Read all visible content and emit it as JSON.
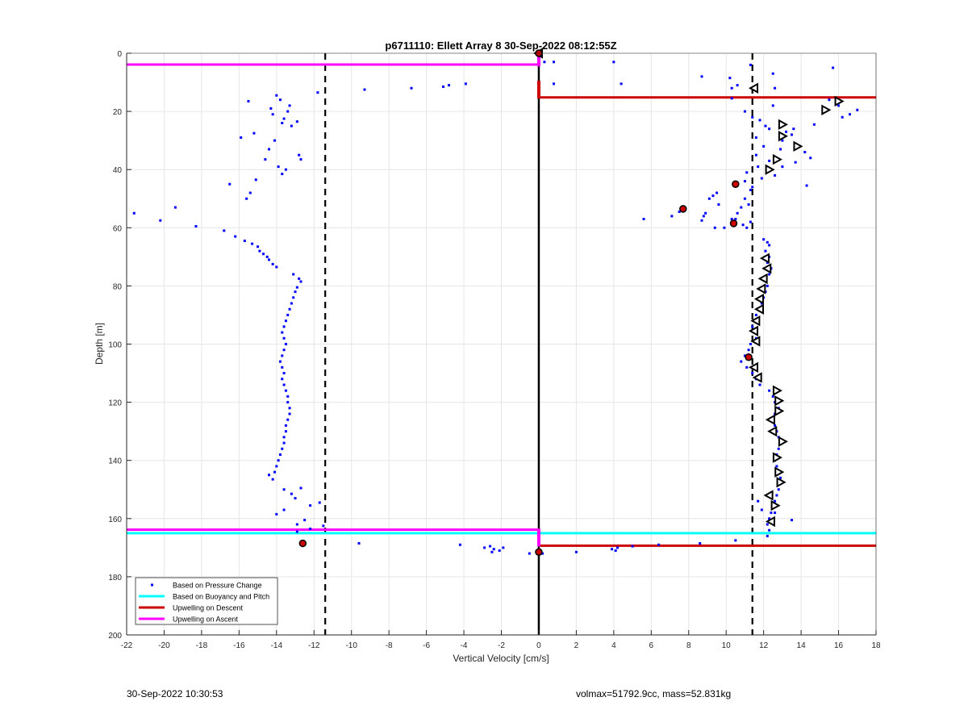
{
  "chart_data": {
    "type": "scatter",
    "title": "p6711110: Ellett Array 8 30-Sep-2022 08:12:55Z",
    "xlabel": "Vertical Velocity [cm/s]",
    "ylabel": "Depth [m]",
    "xlim": [
      -22,
      18
    ],
    "ylim": [
      0,
      200
    ],
    "y_reversed": true,
    "grid": true,
    "legend_position": "bottom-left",
    "xticks": [
      "-22",
      "-20",
      "-18",
      "-16",
      "-14",
      "-12",
      "-10",
      "-8",
      "-6",
      "-4",
      "-2",
      "0",
      "2",
      "4",
      "6",
      "8",
      "10",
      "12",
      "14",
      "16",
      "18"
    ],
    "yticks": [
      "0",
      "20",
      "40",
      "60",
      "80",
      "100",
      "120",
      "140",
      "160",
      "180",
      "200"
    ],
    "legend": [
      {
        "label": "Based on Pressure Change",
        "color": "#0000ff"
      },
      {
        "label": "Based on Buoyancy and Pitch",
        "color": "#00ffff"
      },
      {
        "label": "Upwelling on Descent",
        "color": "#cc0000"
      },
      {
        "label": "Upwelling on Ascent",
        "color": "#ff00ff"
      }
    ],
    "series": [
      {
        "name": "Based on Pressure Change",
        "color": "#0000ff",
        "points": [
          [
            -21.6,
            55
          ],
          [
            -20.2,
            57.5
          ],
          [
            -19.4,
            53
          ],
          [
            -18.3,
            59.5
          ],
          [
            -16.8,
            61
          ],
          [
            -16.5,
            45
          ],
          [
            -16.2,
            63
          ],
          [
            -15.9,
            29
          ],
          [
            -15.7,
            64.5
          ],
          [
            -15.6,
            50
          ],
          [
            -15.5,
            16.5
          ],
          [
            -15.4,
            48
          ],
          [
            -15.3,
            65.5
          ],
          [
            -15.2,
            27.5
          ],
          [
            -15.1,
            43.5
          ],
          [
            -15.0,
            66.5
          ],
          [
            -14.9,
            68
          ],
          [
            -14.7,
            69
          ],
          [
            -14.6,
            36.5
          ],
          [
            -14.5,
            70
          ],
          [
            -14.4,
            33
          ],
          [
            -14.4,
            71
          ],
          [
            -14.3,
            19
          ],
          [
            -14.2,
            21
          ],
          [
            -14.2,
            72.5
          ],
          [
            -14.1,
            30
          ],
          [
            -14.0,
            14.5
          ],
          [
            -14.0,
            73.5
          ],
          [
            -13.9,
            39
          ],
          [
            -13.8,
            16
          ],
          [
            -13.7,
            24
          ],
          [
            -13.7,
            41.5
          ],
          [
            -13.6,
            22.5
          ],
          [
            -13.5,
            40
          ],
          [
            -13.4,
            20
          ],
          [
            -13.3,
            18
          ],
          [
            -13.2,
            25
          ],
          [
            -12.9,
            23.5
          ],
          [
            -12.8,
            35
          ],
          [
            -12.7,
            36.5
          ],
          [
            -13.1,
            76
          ],
          [
            -12.8,
            77.5
          ],
          [
            -12.7,
            78.5
          ],
          [
            -12.9,
            80.5
          ],
          [
            -13.0,
            82
          ],
          [
            -13.1,
            84
          ],
          [
            -13.2,
            86
          ],
          [
            -13.3,
            88
          ],
          [
            -13.4,
            90
          ],
          [
            -13.5,
            92
          ],
          [
            -13.6,
            94
          ],
          [
            -13.7,
            96
          ],
          [
            -13.6,
            98
          ],
          [
            -13.5,
            100
          ],
          [
            -13.6,
            102
          ],
          [
            -13.7,
            104
          ],
          [
            -13.8,
            106
          ],
          [
            -13.7,
            108
          ],
          [
            -13.6,
            110
          ],
          [
            -13.7,
            112
          ],
          [
            -13.6,
            114
          ],
          [
            -13.5,
            116
          ],
          [
            -13.4,
            118
          ],
          [
            -13.4,
            120
          ],
          [
            -13.3,
            122
          ],
          [
            -13.3,
            124
          ],
          [
            -13.4,
            126
          ],
          [
            -13.5,
            128
          ],
          [
            -13.5,
            130
          ],
          [
            -13.6,
            132
          ],
          [
            -13.6,
            134
          ],
          [
            -13.7,
            136
          ],
          [
            -13.8,
            138
          ],
          [
            -13.9,
            140
          ],
          [
            -14.0,
            142
          ],
          [
            -14.1,
            144
          ],
          [
            -14.4,
            145
          ],
          [
            -14.2,
            146.5
          ],
          [
            -13.6,
            150
          ],
          [
            -13.2,
            151.5
          ],
          [
            -12.7,
            149.5
          ],
          [
            -13.0,
            153
          ],
          [
            -13.6,
            157
          ],
          [
            -14.0,
            158.5
          ],
          [
            -12.2,
            155.5
          ],
          [
            -11.7,
            154.5
          ],
          [
            -12.5,
            160.5
          ],
          [
            -12.9,
            162
          ],
          [
            -11.5,
            162.5
          ],
          [
            -12.2,
            163.5
          ],
          [
            -12.9,
            164.5
          ],
          [
            -11.8,
            13.5
          ],
          [
            -9.3,
            12.5
          ],
          [
            -6.8,
            12
          ],
          [
            -5.1,
            11.5
          ],
          [
            -4.8,
            11
          ],
          [
            -3.9,
            10.5
          ],
          [
            -9.6,
            168.5
          ],
          [
            -4.2,
            169
          ],
          [
            -2.9,
            170
          ],
          [
            -2.6,
            169.5
          ],
          [
            -2.4,
            170.5
          ],
          [
            -2.1,
            171
          ],
          [
            -2.5,
            171.5
          ],
          [
            -1.9,
            170
          ],
          [
            -0.5,
            172
          ],
          [
            0.3,
            3
          ],
          [
            0.8,
            3
          ],
          [
            0.8,
            10.5
          ],
          [
            4.0,
            3
          ],
          [
            4.4,
            10.5
          ],
          [
            8.7,
            8
          ],
          [
            10.2,
            8.5
          ],
          [
            10.3,
            12
          ],
          [
            10.3,
            15.5
          ],
          [
            10.6,
            11
          ],
          [
            11.3,
            4
          ],
          [
            12.5,
            7
          ],
          [
            15.7,
            5
          ],
          [
            11.0,
            20
          ],
          [
            11.4,
            22
          ],
          [
            11.8,
            23
          ],
          [
            12.3,
            26
          ],
          [
            11.6,
            29
          ],
          [
            12.0,
            32
          ],
          [
            12.9,
            33
          ],
          [
            11.6,
            35
          ],
          [
            12.3,
            37
          ],
          [
            12.6,
            42
          ],
          [
            11.7,
            39
          ],
          [
            11.1,
            41
          ],
          [
            11.9,
            43
          ],
          [
            11.3,
            47
          ],
          [
            11.0,
            44
          ],
          [
            11.4,
            46
          ],
          [
            11.0,
            50
          ],
          [
            11.2,
            52
          ],
          [
            10.8,
            53
          ],
          [
            10.6,
            55
          ],
          [
            10.5,
            57
          ],
          [
            10.9,
            59
          ],
          [
            11.1,
            60
          ],
          [
            11.3,
            58
          ],
          [
            9.5,
            48
          ],
          [
            9.3,
            49
          ],
          [
            9.1,
            50
          ],
          [
            9.6,
            52
          ],
          [
            8.9,
            55
          ],
          [
            8.8,
            56
          ],
          [
            8.7,
            57.5
          ],
          [
            9.4,
            60
          ],
          [
            9.9,
            60
          ],
          [
            10.3,
            57
          ],
          [
            7.5,
            54.5
          ],
          [
            7.1,
            56
          ],
          [
            5.6,
            57
          ],
          [
            12.6,
            12
          ],
          [
            12.1,
            25
          ],
          [
            13.0,
            30
          ],
          [
            13.2,
            27
          ],
          [
            13.6,
            26
          ],
          [
            12.5,
            18
          ],
          [
            16.0,
            18
          ],
          [
            15.5,
            16
          ],
          [
            17.0,
            19.5
          ],
          [
            16.6,
            21
          ],
          [
            16.2,
            22
          ],
          [
            15.2,
            19
          ],
          [
            14.7,
            24.5
          ],
          [
            13.5,
            28
          ],
          [
            14.2,
            34
          ],
          [
            14.5,
            36
          ],
          [
            13.7,
            37.5
          ],
          [
            13.0,
            39
          ],
          [
            14.3,
            45.5
          ],
          [
            12.0,
            64
          ],
          [
            12.2,
            65
          ],
          [
            12.3,
            66
          ],
          [
            12.1,
            68
          ],
          [
            12.3,
            70
          ],
          [
            12.2,
            72
          ],
          [
            12.4,
            74
          ],
          [
            12.3,
            76
          ],
          [
            12.0,
            78
          ],
          [
            12.2,
            80
          ],
          [
            12.1,
            82
          ],
          [
            12.0,
            84
          ],
          [
            11.9,
            86
          ],
          [
            11.8,
            88
          ],
          [
            11.6,
            90
          ],
          [
            11.5,
            92
          ],
          [
            11.4,
            94
          ],
          [
            11.5,
            96
          ],
          [
            11.6,
            98
          ],
          [
            11.3,
            100
          ],
          [
            11.2,
            102
          ],
          [
            11.0,
            104
          ],
          [
            10.8,
            106
          ],
          [
            11.1,
            108
          ],
          [
            11.4,
            110
          ],
          [
            11.6,
            112
          ],
          [
            11.8,
            114
          ],
          [
            12.3,
            116
          ],
          [
            12.5,
            118
          ],
          [
            12.6,
            120
          ],
          [
            12.8,
            122
          ],
          [
            12.6,
            124
          ],
          [
            12.5,
            126
          ],
          [
            12.6,
            128
          ],
          [
            12.7,
            130
          ],
          [
            12.8,
            132
          ],
          [
            12.9,
            134
          ],
          [
            12.8,
            136
          ],
          [
            12.7,
            138
          ],
          [
            12.6,
            140
          ],
          [
            12.7,
            142
          ],
          [
            12.8,
            144
          ],
          [
            12.9,
            146
          ],
          [
            12.9,
            148
          ],
          [
            12.8,
            150
          ],
          [
            12.7,
            152
          ],
          [
            12.6,
            154
          ],
          [
            12.5,
            156
          ],
          [
            12.4,
            158
          ],
          [
            12.3,
            160
          ],
          [
            12.2,
            162
          ],
          [
            12.3,
            164
          ],
          [
            12.2,
            166
          ],
          [
            13.5,
            160.5
          ],
          [
            12.6,
            158
          ],
          [
            11.9,
            157
          ],
          [
            11.7,
            154
          ],
          [
            10.5,
            167.5
          ],
          [
            8.6,
            168.5
          ],
          [
            6.4,
            169
          ],
          [
            5.0,
            169.5
          ],
          [
            4.2,
            170
          ],
          [
            3.9,
            170.5
          ],
          [
            4.1,
            171
          ],
          [
            2.0,
            171.5
          ],
          [
            0.2,
            172
          ]
        ]
      },
      {
        "name": "Based on Buoyancy and Pitch",
        "color": "#00ffff",
        "depths": [
          165
        ]
      },
      {
        "name": "Upwelling on Descent",
        "color": "#cc0000",
        "depths": [
          15.2,
          169.3
        ]
      },
      {
        "name": "Upwelling on Ascent",
        "color": "#ff00ff",
        "depths": [
          3.9,
          163.8
        ]
      },
      {
        "name": "",
        "color": "#000000",
        "marker": "triangle-left",
        "points": [
          [
            0,
            0
          ],
          [
            11.5,
            12
          ],
          [
            12.1,
            70.5
          ],
          [
            12.2,
            74
          ],
          [
            12.0,
            77.5
          ],
          [
            11.9,
            81
          ],
          [
            11.8,
            84.5
          ],
          [
            11.8,
            88
          ],
          [
            11.6,
            92
          ],
          [
            11.5,
            95.5
          ],
          [
            11.6,
            99
          ],
          [
            11.5,
            108
          ],
          [
            11.7,
            111.5
          ],
          [
            12.4,
            126
          ],
          [
            12.5,
            130
          ],
          [
            12.3,
            152
          ],
          [
            12.4,
            161
          ]
        ]
      },
      {
        "name": "",
        "color": "#000000",
        "marker": "triangle-right",
        "points": [
          [
            16.0,
            16.5
          ],
          [
            15.3,
            19.5
          ],
          [
            13.0,
            24.5
          ],
          [
            13.0,
            28.5
          ],
          [
            13.8,
            32
          ],
          [
            12.7,
            36.5
          ],
          [
            12.3,
            40
          ],
          [
            12.7,
            116
          ],
          [
            12.8,
            119.5
          ],
          [
            12.8,
            123
          ],
          [
            13.0,
            133.5
          ],
          [
            12.7,
            139
          ],
          [
            12.8,
            144
          ],
          [
            12.9,
            147.5
          ],
          [
            12.6,
            155.5
          ]
        ]
      },
      {
        "name": "",
        "color": "#cc0000",
        "marker": "red-filled",
        "points": [
          [
            0,
            0
          ],
          [
            10.5,
            45
          ],
          [
            7.7,
            53.5
          ],
          [
            10.4,
            58.5
          ],
          [
            11.2,
            104.5
          ],
          [
            -12.6,
            168.5
          ],
          [
            0,
            171.5
          ]
        ]
      }
    ],
    "vertical_lines": [
      {
        "x": -11.4,
        "style": "dashed",
        "color": "#000000"
      },
      {
        "x": 11.4,
        "style": "dashed",
        "color": "#000000"
      },
      {
        "x": 0,
        "style": "solid",
        "color": "#000000"
      }
    ]
  },
  "footer": {
    "left": "30-Sep-2022 10:30:53",
    "right": "volmax=51792.9cc, mass=52.831kg"
  }
}
